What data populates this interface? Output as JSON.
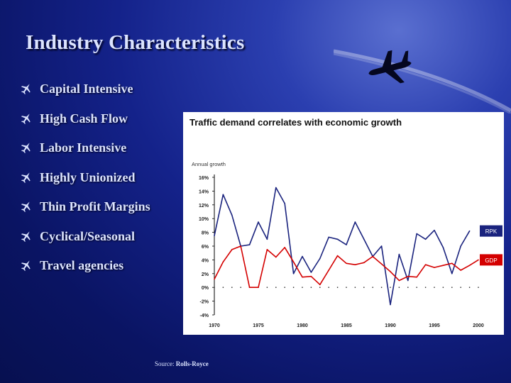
{
  "slide": {
    "title": "Industry Characteristics",
    "bullets": [
      "Capital Intensive",
      "High Cash Flow",
      "Labor Intensive",
      "Highly Unionized",
      "Thin Profit Margins",
      "Cyclical/Seasonal",
      "Travel agencies"
    ],
    "bullet_icon": "airplane-icon",
    "source_prefix": "Source:",
    "source_name": "Rolls-Royce"
  },
  "colors": {
    "background": "#0a1463",
    "text": "#dce4ff",
    "rpk": "#1a237e",
    "gdp": "#d40000",
    "axis": "#000000"
  },
  "chart_data": {
    "type": "line",
    "title": "Traffic demand correlates with economic growth",
    "ylabel": "Annual growth",
    "xlabel": "",
    "x": [
      1970,
      1971,
      1972,
      1973,
      1974,
      1975,
      1976,
      1977,
      1978,
      1979,
      1980,
      1981,
      1982,
      1983,
      1984,
      1985,
      1986,
      1987,
      1988,
      1989,
      1990,
      1991,
      1992,
      1993,
      1994,
      1995,
      1996,
      1997,
      1998,
      1999,
      2000
    ],
    "x_ticks": [
      "1970",
      "1975",
      "1980",
      "1985",
      "1990",
      "1995",
      "2000"
    ],
    "y_ticks": [
      "16%",
      "14%",
      "12%",
      "10%",
      "8%",
      "6%",
      "4%",
      "2%",
      "0%",
      "-2%",
      "-4%"
    ],
    "ylim": [
      -4,
      16
    ],
    "series": [
      {
        "name": "RPK",
        "values": [
          7.5,
          13.5,
          10.5,
          6.0,
          6.2,
          9.5,
          7.0,
          14.5,
          12.2,
          2.0,
          4.5,
          2.2,
          4.2,
          7.3,
          7.0,
          6.2,
          9.5,
          7.0,
          4.5,
          6.0,
          -2.5,
          4.8,
          1.0,
          7.8,
          7.0,
          8.3,
          5.8,
          2.0,
          6.0,
          8.2,
          null
        ]
      },
      {
        "name": "GDP",
        "values": [
          1.2,
          3.7,
          5.5,
          6.0,
          0.0,
          0.0,
          5.5,
          4.4,
          5.8,
          3.7,
          1.5,
          1.6,
          0.4,
          2.5,
          4.6,
          3.5,
          3.3,
          3.6,
          4.5,
          3.4,
          2.3,
          1.0,
          1.6,
          1.5,
          3.3,
          2.9,
          3.2,
          3.5,
          2.5,
          3.2,
          4.0
        ]
      }
    ],
    "legend": "right, at end of each series"
  }
}
